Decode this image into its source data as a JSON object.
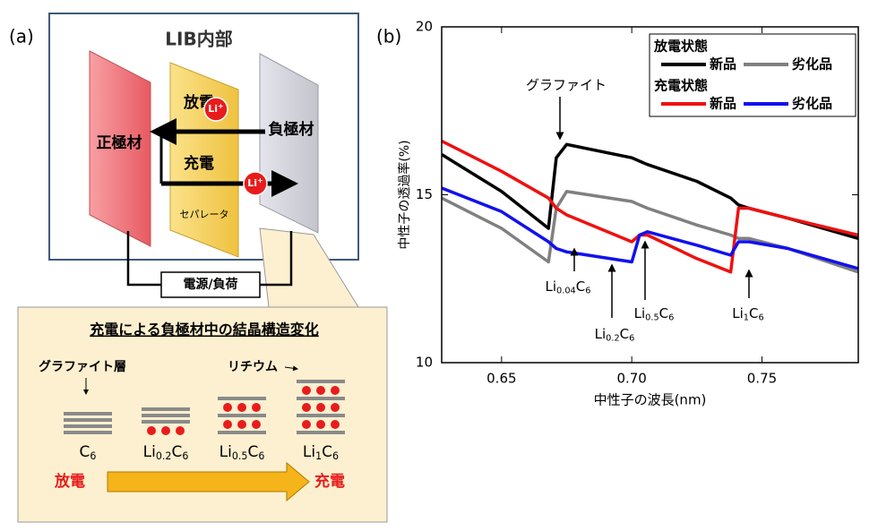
{
  "diagram": {
    "panel_label": "(a)",
    "title": "LIB内部",
    "cathode": "正極材",
    "anode": "負極材",
    "separator": "セパレータ",
    "discharge": "放電",
    "charge": "充電",
    "li_ion": [
      "Li",
      "+"
    ],
    "power": "電源/負荷",
    "inset_title": "充電による負極材中の結晶構造変化",
    "graphite_layer": "グラファイト層",
    "lithium": "リチウム",
    "stages": [
      [
        "C",
        "6"
      ],
      [
        "Li",
        "0.2",
        "C",
        "6"
      ],
      [
        "Li",
        "0.5",
        "C",
        "6"
      ],
      [
        "Li",
        "1",
        "C",
        "6"
      ]
    ]
  },
  "chart_data": {
    "type": "line",
    "panel_label": "(b)",
    "x_label": "中性子の波長(nm)",
    "y_label": "中性子の透過率(%)",
    "x": [
      0.627,
      0.65,
      0.668,
      0.671,
      0.675,
      0.7,
      0.703,
      0.706,
      0.725,
      0.738,
      0.741,
      0.745,
      0.76,
      0.787
    ],
    "series": [
      {
        "name": "新品",
        "color": "#000000",
        "values": [
          16.2,
          15.1,
          14.0,
          16.1,
          16.5,
          16.1,
          16.0,
          15.9,
          15.4,
          14.9,
          14.7,
          14.6,
          14.3,
          13.7
        ]
      },
      {
        "name": "劣化品",
        "color": "#808080",
        "values": [
          14.9,
          14.0,
          13.0,
          14.6,
          15.1,
          14.8,
          14.7,
          14.6,
          14.1,
          13.8,
          13.7,
          13.7,
          13.4,
          12.7
        ]
      },
      {
        "name": "新品",
        "color": "#ee1111",
        "values": [
          16.6,
          15.7,
          14.9,
          14.6,
          14.4,
          13.6,
          13.8,
          13.8,
          13.1,
          12.7,
          14.6,
          14.6,
          14.3,
          13.8
        ]
      },
      {
        "name": "劣化品",
        "color": "#1111ee",
        "values": [
          15.2,
          14.5,
          13.6,
          13.4,
          13.3,
          13.0,
          13.8,
          13.9,
          13.5,
          13.2,
          13.6,
          13.6,
          13.4,
          12.8
        ]
      }
    ],
    "legend_titles": [
      "放電状態",
      "充電状態"
    ],
    "xlim": [
      0.627,
      0.787
    ],
    "ylim": [
      10,
      20
    ],
    "xticks": [
      0.65,
      {
        "value": 0.7,
        "label": "0.70"
      },
      0.75
    ],
    "yticks": [
      10,
      15,
      20
    ],
    "annotations": [
      [
        "グラファイト"
      ],
      [
        "Li",
        "0.04",
        "C",
        "6"
      ],
      [
        "Li",
        "0.2",
        "C",
        "6"
      ],
      [
        "Li",
        "0.5",
        "C",
        "6"
      ],
      [
        "Li",
        "1",
        "C",
        "6"
      ]
    ]
  }
}
